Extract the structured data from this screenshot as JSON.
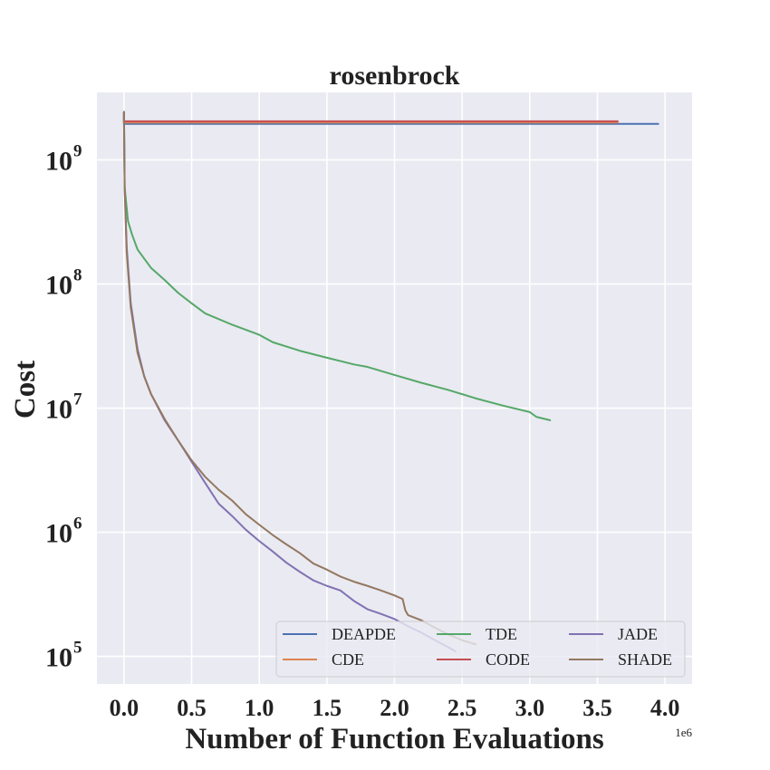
{
  "chart_data": {
    "type": "line",
    "title": "rosenbrock",
    "xlabel": "Number of Function Evaluations",
    "ylabel": "Cost",
    "x_offset_label": "1e6",
    "x_scale_factor": 1000000,
    "xlim": [
      -0.2,
      4.2
    ],
    "ylim": [
      60000,
      3500000000
    ],
    "yscale": "log",
    "x_ticks": [
      "0.0",
      "0.5",
      "1.0",
      "1.5",
      "2.0",
      "2.5",
      "3.0",
      "3.5",
      "4.0"
    ],
    "y_ticks": [
      {
        "base": "10",
        "exp": "5",
        "value": 100000
      },
      {
        "base": "10",
        "exp": "6",
        "value": 1000000
      },
      {
        "base": "10",
        "exp": "7",
        "value": 10000000
      },
      {
        "base": "10",
        "exp": "8",
        "value": 100000000
      },
      {
        "base": "10",
        "exp": "9",
        "value": 1000000000
      }
    ],
    "grid": true,
    "legend": {
      "position": "lower-right",
      "columns": 3
    },
    "series": [
      {
        "name": "DEAPDE",
        "color": "#4c72b0",
        "points": [
          [
            0.0,
            2400000000
          ],
          [
            0.0,
            1950000000
          ],
          [
            1.0,
            1950000000
          ],
          [
            2.0,
            1950000000
          ],
          [
            3.0,
            1950000000
          ],
          [
            3.95,
            1950000000
          ]
        ]
      },
      {
        "name": "CDE",
        "color": "#dd8452",
        "points": [
          [
            0.0,
            2400000000
          ],
          [
            0.0,
            2000000000
          ],
          [
            1.0,
            2000000000
          ],
          [
            2.0,
            2000000000
          ],
          [
            3.0,
            2000000000
          ],
          [
            3.65,
            2000000000
          ]
        ]
      },
      {
        "name": "TDE",
        "color": "#55a868",
        "points": [
          [
            0.0,
            2200000000
          ],
          [
            0.005,
            600000000
          ],
          [
            0.03,
            320000000
          ],
          [
            0.06,
            250000000
          ],
          [
            0.1,
            190000000
          ],
          [
            0.15,
            160000000
          ],
          [
            0.2,
            135000000
          ],
          [
            0.3,
            108000000
          ],
          [
            0.4,
            85000000
          ],
          [
            0.5,
            70000000
          ],
          [
            0.6,
            58000000
          ],
          [
            0.8,
            47000000
          ],
          [
            1.0,
            39000000
          ],
          [
            1.1,
            34000000
          ],
          [
            1.3,
            29000000
          ],
          [
            1.5,
            25500000
          ],
          [
            1.7,
            22500000
          ],
          [
            1.8,
            21500000
          ],
          [
            2.0,
            18500000
          ],
          [
            2.2,
            16000000
          ],
          [
            2.4,
            14000000
          ],
          [
            2.6,
            12000000
          ],
          [
            2.8,
            10500000
          ],
          [
            3.0,
            9300000
          ],
          [
            3.05,
            8500000
          ],
          [
            3.15,
            8000000
          ]
        ]
      },
      {
        "name": "CODE",
        "color": "#c44e52",
        "points": [
          [
            0.0,
            2400000000
          ],
          [
            0.0,
            2050000000
          ],
          [
            1.0,
            2050000000
          ],
          [
            2.0,
            2050000000
          ],
          [
            3.0,
            2050000000
          ],
          [
            3.65,
            2050000000
          ]
        ]
      },
      {
        "name": "JADE",
        "color": "#8172b2",
        "points": [
          [
            0.0,
            2400000000
          ],
          [
            0.005,
            600000000
          ],
          [
            0.02,
            200000000
          ],
          [
            0.05,
            70000000
          ],
          [
            0.1,
            30000000
          ],
          [
            0.15,
            18000000
          ],
          [
            0.2,
            13000000
          ],
          [
            0.3,
            8000000
          ],
          [
            0.4,
            5500000
          ],
          [
            0.5,
            3700000
          ],
          [
            0.6,
            2500000
          ],
          [
            0.7,
            1700000
          ],
          [
            0.8,
            1350000
          ],
          [
            0.9,
            1050000
          ],
          [
            1.0,
            850000
          ],
          [
            1.1,
            700000
          ],
          [
            1.2,
            570000
          ],
          [
            1.3,
            480000
          ],
          [
            1.4,
            410000
          ],
          [
            1.5,
            370000
          ],
          [
            1.6,
            340000
          ],
          [
            1.7,
            280000
          ],
          [
            1.8,
            240000
          ],
          [
            1.9,
            220000
          ],
          [
            2.0,
            200000
          ],
          [
            2.1,
            175000
          ],
          [
            2.2,
            155000
          ],
          [
            2.3,
            135000
          ],
          [
            2.4,
            118000
          ],
          [
            2.45,
            110000
          ]
        ]
      },
      {
        "name": "SHADE",
        "color": "#937860",
        "points": [
          [
            0.0,
            2450000000
          ],
          [
            0.005,
            600000000
          ],
          [
            0.02,
            180000000
          ],
          [
            0.05,
            65000000
          ],
          [
            0.1,
            28000000
          ],
          [
            0.15,
            18000000
          ],
          [
            0.2,
            13000000
          ],
          [
            0.3,
            8200000
          ],
          [
            0.4,
            5500000
          ],
          [
            0.5,
            3800000
          ],
          [
            0.6,
            2800000
          ],
          [
            0.7,
            2200000
          ],
          [
            0.8,
            1800000
          ],
          [
            0.9,
            1400000
          ],
          [
            1.0,
            1150000
          ],
          [
            1.1,
            950000
          ],
          [
            1.2,
            800000
          ],
          [
            1.3,
            680000
          ],
          [
            1.4,
            560000
          ],
          [
            1.5,
            500000
          ],
          [
            1.6,
            440000
          ],
          [
            1.7,
            400000
          ],
          [
            1.8,
            370000
          ],
          [
            1.9,
            340000
          ],
          [
            2.0,
            310000
          ],
          [
            2.06,
            290000
          ],
          [
            2.08,
            235000
          ],
          [
            2.1,
            215000
          ],
          [
            2.2,
            195000
          ],
          [
            2.3,
            170000
          ],
          [
            2.4,
            150000
          ],
          [
            2.5,
            135000
          ],
          [
            2.6,
            125000
          ]
        ]
      }
    ]
  }
}
